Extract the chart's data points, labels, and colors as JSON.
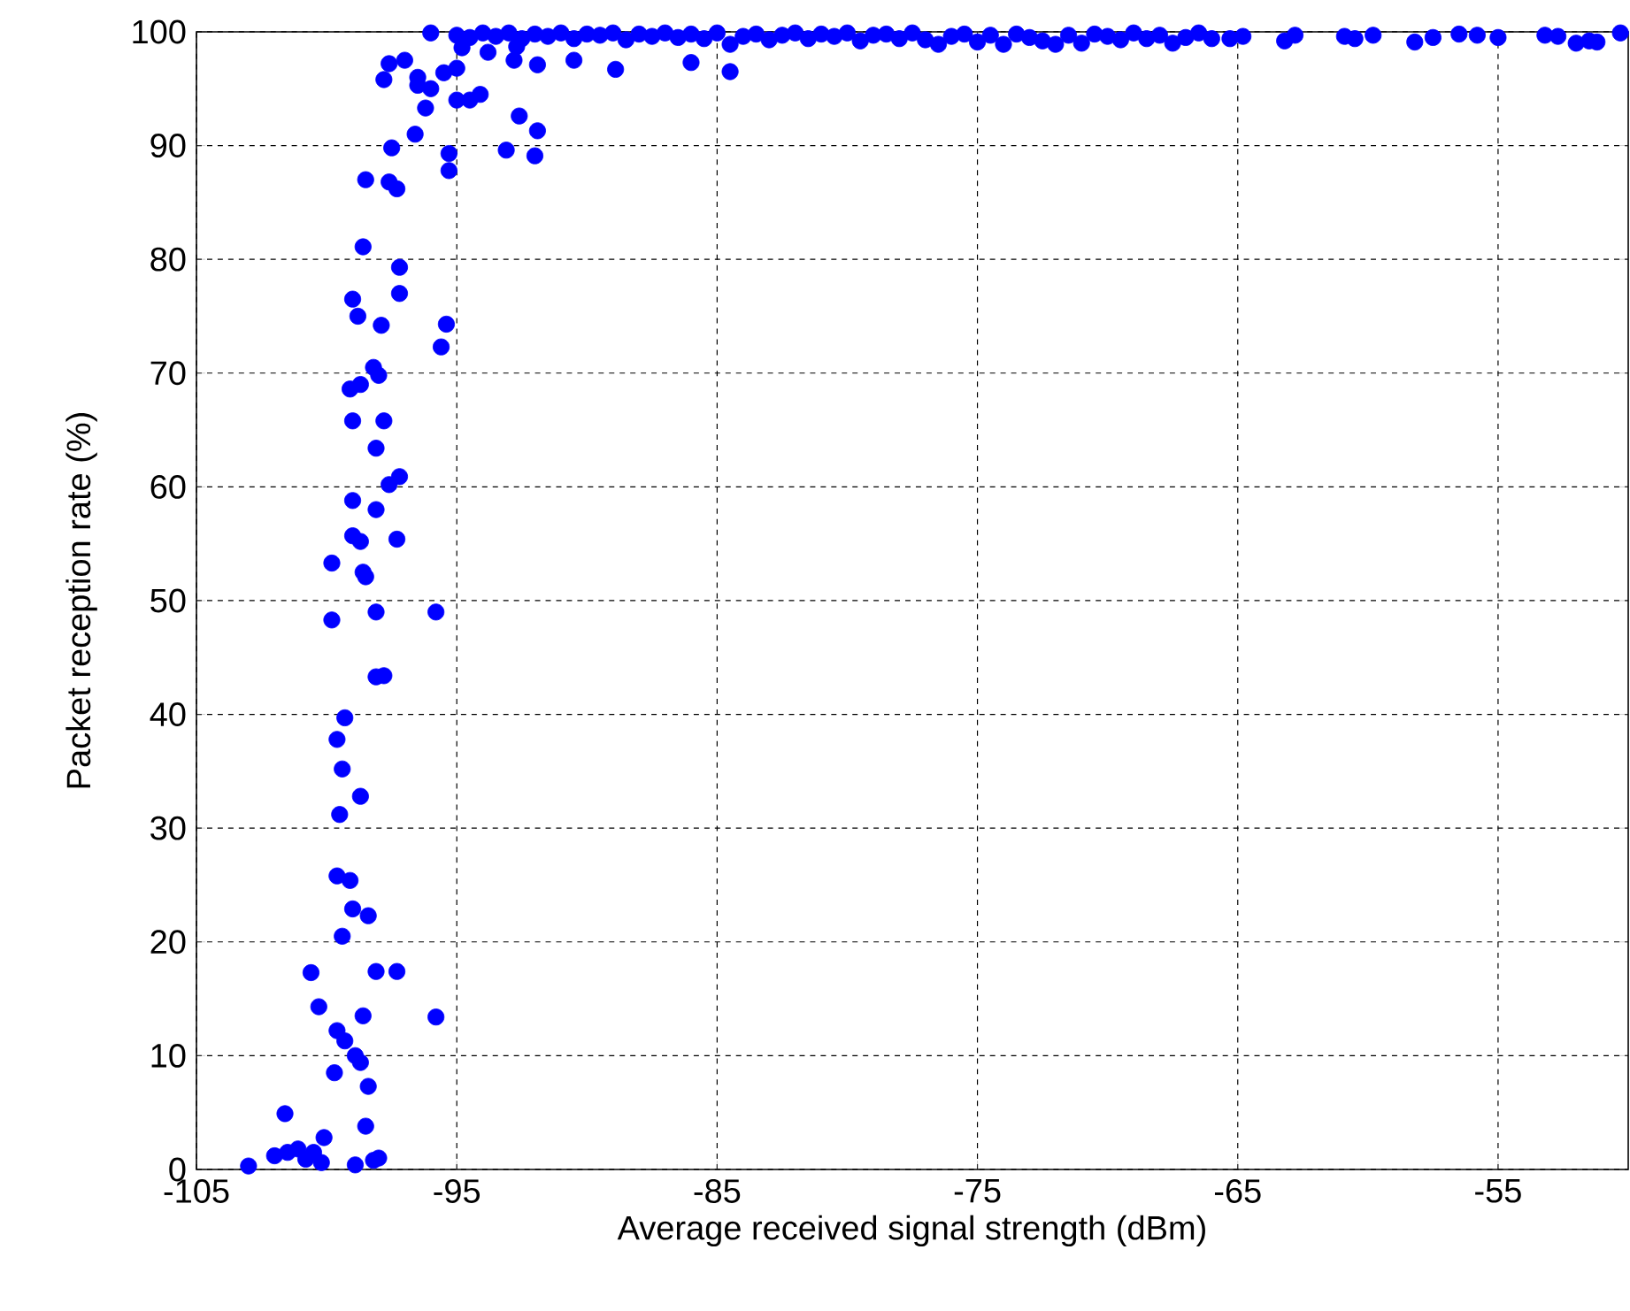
{
  "chart_data": {
    "type": "scatter",
    "xlabel": "Average received signal strength (dBm)",
    "ylabel": "Packet reception rate (%)",
    "xlim": [
      -105,
      -50
    ],
    "ylim": [
      0,
      100
    ],
    "xticks": [
      -105,
      -95,
      -85,
      -75,
      -65,
      -55
    ],
    "yticks": [
      0,
      10,
      20,
      30,
      40,
      50,
      60,
      70,
      80,
      90,
      100
    ],
    "grid": true,
    "series": [
      {
        "color": "#0000ff",
        "x": [
          -103.0,
          -102.0,
          -101.6,
          -101.5,
          -101.1,
          -100.8,
          -100.5,
          -100.2,
          -100.1,
          -100.6,
          -100.3,
          -99.7,
          -99.6,
          -99.3,
          -98.9,
          -98.6,
          -98.7,
          -98.4,
          -98.5,
          -98.9,
          -98.2,
          -98.0,
          -98.1,
          -97.3,
          -95.8,
          -99.4,
          -99.0,
          -98.4,
          -99.6,
          -99.1,
          -98.7,
          -99.5,
          -99.4,
          -99.6,
          -99.3,
          -99.8,
          -99.8,
          -99.0,
          -98.7,
          -98.5,
          -98.6,
          -99.0,
          -98.1,
          -97.6,
          -97.2,
          -97.3,
          -98.1,
          -95.8,
          -98.1,
          -97.8,
          -99.0,
          -97.8,
          -98.1,
          -99.1,
          -98.7,
          -98.2,
          -98.0,
          -97.9,
          -98.8,
          -99.0,
          -95.4,
          -95.6,
          -97.2,
          -97.2,
          -98.6,
          -98.5,
          -97.3,
          -97.6,
          -97.5,
          -96.6,
          -95.3,
          -95.3,
          -93.1,
          -92.6,
          -91.9,
          -92.0,
          -96.2,
          -96.5,
          -95.0,
          -94.5,
          -94.1,
          -97.8,
          -97.6,
          -97.0,
          -96.5,
          -96.0,
          -95.5,
          -95.0,
          -94.8,
          -93.8,
          -92.7,
          -92.8,
          -91.9,
          -88.9,
          -84.5,
          -90.5,
          -86.0,
          -96.0,
          -95.0,
          -94.5,
          -94.0,
          -93.5,
          -93.0,
          -92.5,
          -92.0,
          -91.5,
          -91.0,
          -90.5,
          -90.0,
          -89.5,
          -89.0,
          -88.5,
          -88.0,
          -87.5,
          -87.0,
          -86.5,
          -86.0,
          -85.5,
          -85.0,
          -84.5,
          -84.0,
          -83.5,
          -83.0,
          -82.5,
          -82.0,
          -81.5,
          -81.0,
          -80.5,
          -80.0,
          -79.5,
          -79.0,
          -78.5,
          -78.0,
          -77.5,
          -77.0,
          -76.5,
          -76.0,
          -75.5,
          -75.0,
          -74.5,
          -74.0,
          -73.5,
          -73.0,
          -72.5,
          -72.0,
          -71.5,
          -71.0,
          -70.5,
          -70.0,
          -69.5,
          -69.0,
          -68.5,
          -68.0,
          -67.5,
          -67.0,
          -66.5,
          -66.0,
          -65.3,
          -64.8,
          -63.2,
          -62.8,
          -60.9,
          -60.5,
          -59.8,
          -58.2,
          -57.5,
          -56.5,
          -55.8,
          -55.0,
          -53.2,
          -52.7,
          -52.0,
          -51.5,
          -51.2,
          -50.3
        ],
        "values": [
          0.3,
          1.2,
          4.9,
          1.5,
          1.8,
          0.9,
          1.5,
          0.6,
          2.8,
          17.3,
          14.3,
          8.5,
          12.2,
          11.3,
          10.0,
          13.5,
          9.4,
          7.3,
          3.8,
          0.4,
          0.8,
          1.0,
          17.4,
          17.4,
          13.4,
          20.5,
          22.9,
          22.3,
          25.8,
          25.4,
          32.8,
          31.2,
          35.2,
          37.8,
          39.7,
          48.3,
          53.3,
          55.7,
          55.2,
          52.1,
          52.5,
          58.8,
          58.0,
          60.2,
          60.9,
          55.4,
          49.0,
          49.0,
          43.3,
          43.4,
          65.8,
          65.8,
          63.4,
          68.6,
          69.0,
          70.5,
          69.8,
          74.2,
          75.0,
          76.5,
          74.3,
          72.3,
          77.0,
          79.3,
          81.1,
          87.0,
          86.2,
          86.8,
          89.8,
          91.0,
          89.3,
          87.8,
          89.6,
          92.6,
          91.3,
          89.1,
          93.3,
          95.3,
          94.0,
          94.0,
          94.5,
          95.8,
          97.2,
          97.5,
          96.0,
          95.0,
          96.4,
          96.8,
          98.6,
          98.2,
          98.7,
          97.5,
          97.1,
          96.7,
          96.5,
          97.5,
          97.3,
          99.9,
          99.7,
          99.5,
          99.9,
          99.6,
          99.9,
          99.4,
          99.8,
          99.6,
          99.9,
          99.4,
          99.8,
          99.7,
          99.9,
          99.3,
          99.8,
          99.6,
          99.9,
          99.5,
          99.8,
          99.4,
          99.9,
          98.9,
          99.6,
          99.8,
          99.3,
          99.7,
          99.9,
          99.4,
          99.8,
          99.6,
          99.9,
          99.2,
          99.7,
          99.8,
          99.4,
          99.9,
          99.3,
          98.9,
          99.6,
          99.8,
          99.1,
          99.7,
          98.9,
          99.8,
          99.5,
          99.2,
          98.9,
          99.7,
          99.0,
          99.8,
          99.6,
          99.3,
          99.9,
          99.4,
          99.7,
          99.0,
          99.5,
          99.9,
          99.4,
          99.4,
          99.6,
          99.2,
          99.7,
          99.6,
          99.4,
          99.7,
          99.1,
          99.5,
          99.8,
          99.7,
          99.5,
          99.7,
          99.6,
          99.0,
          99.2,
          99.1,
          99.9
        ]
      }
    ]
  }
}
